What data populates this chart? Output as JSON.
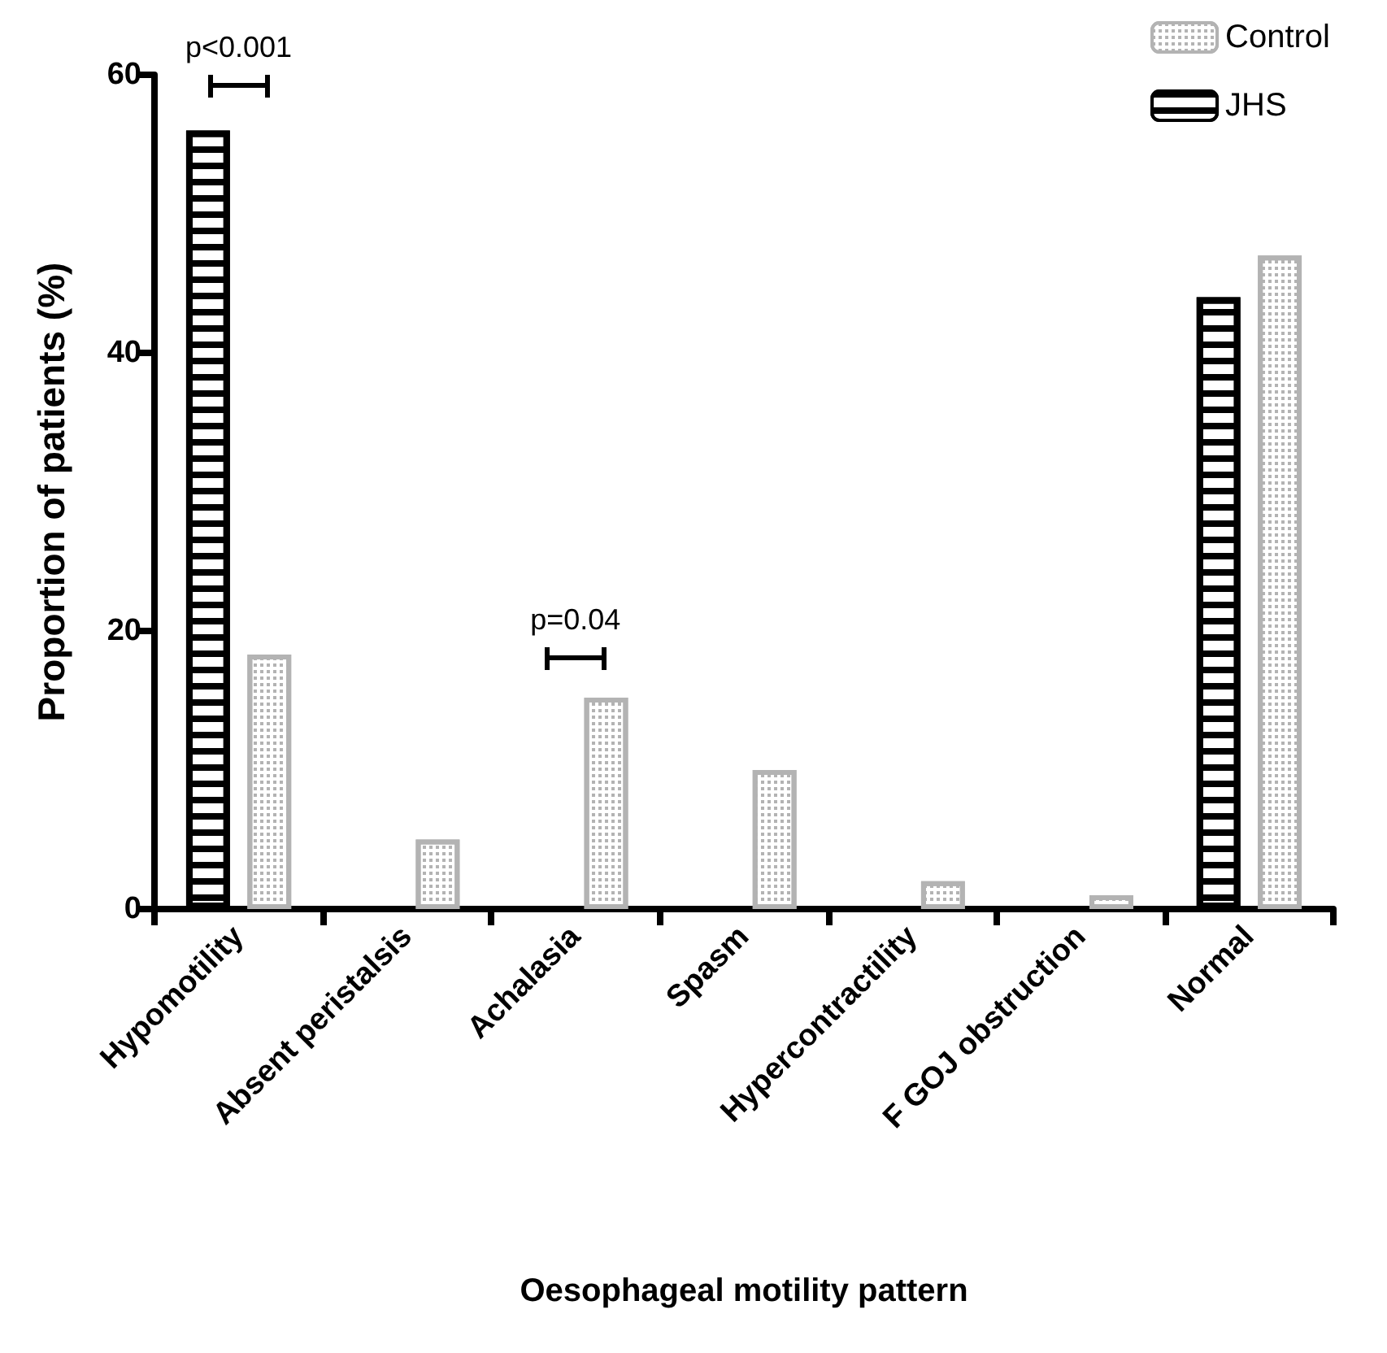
{
  "chart_data": {
    "type": "bar",
    "xlabel": "Oesophageal motility pattern",
    "ylabel": "Proportion of patients (%)",
    "categories": [
      "Hypomotility",
      "Absent peristalsis",
      "Achalasia",
      "Spasm",
      "Hypercontractility",
      "F GOJ obstruction",
      "Normal"
    ],
    "series": [
      {
        "name": "JHS",
        "color": "#000000",
        "values": [
          56,
          0,
          0,
          0,
          0,
          0,
          44
        ]
      },
      {
        "name": "Control",
        "color": "#b3b3b3",
        "values": [
          18.3,
          5,
          15.2,
          10,
          2,
          1,
          47
        ]
      }
    ],
    "ylim": [
      0,
      60
    ],
    "yticks": [
      0,
      20,
      40,
      60
    ],
    "grid": false,
    "legend": "top right",
    "annotations": [
      "p<0.001",
      "p=0.04"
    ]
  }
}
